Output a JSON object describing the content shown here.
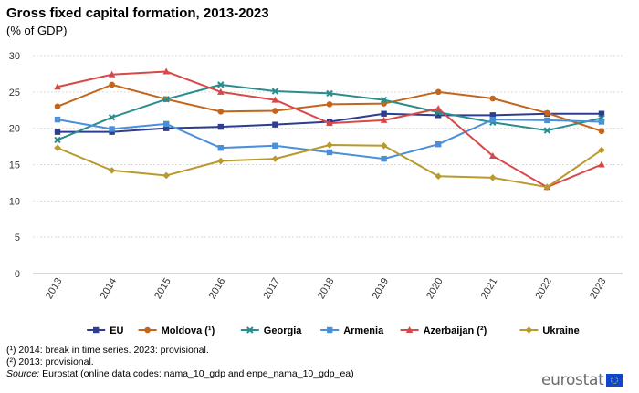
{
  "header": {
    "title": "Gross fixed capital formation, 2013-2023",
    "subtitle": "(% of GDP)"
  },
  "chart_data": {
    "type": "line",
    "title": "Gross fixed capital formation, 2013-2023",
    "subtitle": "(% of GDP)",
    "xlabel": "",
    "ylabel": "",
    "ylim": [
      0,
      30
    ],
    "yticks": [
      0,
      5,
      10,
      15,
      20,
      25,
      30
    ],
    "grid": "horizontal",
    "legend_position": "bottom",
    "x": [
      "2013",
      "2014",
      "2015",
      "2016",
      "2017",
      "2018",
      "2019",
      "2020",
      "2021",
      "2022",
      "2023"
    ],
    "series": [
      {
        "name": "EU",
        "color": "#2e3d8f",
        "marker": "square",
        "values": [
          19.5,
          19.5,
          20.0,
          20.2,
          20.5,
          20.9,
          22.0,
          21.8,
          21.8,
          22.0,
          22.0
        ]
      },
      {
        "name": "Moldova (¹)",
        "color": "#c2661b",
        "marker": "circle",
        "values": [
          23.0,
          26.0,
          24.0,
          22.3,
          22.4,
          23.3,
          23.4,
          25.0,
          24.1,
          22.1,
          19.6
        ]
      },
      {
        "name": "Georgia",
        "color": "#2a8c8c",
        "marker": "x",
        "values": [
          18.4,
          21.5,
          24.0,
          26.0,
          25.1,
          24.8,
          23.9,
          22.2,
          20.8,
          19.7,
          21.4
        ]
      },
      {
        "name": "Armenia",
        "color": "#4a90d9",
        "marker": "square",
        "values": [
          21.2,
          19.9,
          20.6,
          17.3,
          17.6,
          16.7,
          15.8,
          17.8,
          21.2,
          21.1,
          20.9
        ]
      },
      {
        "name": "Azerbaijan (²)",
        "color": "#d94848",
        "marker": "triangle",
        "values": [
          25.7,
          27.4,
          27.8,
          25.0,
          23.9,
          20.7,
          21.1,
          22.7,
          16.2,
          11.9,
          15.0
        ]
      },
      {
        "name": "Ukraine",
        "color": "#b89a2e",
        "marker": "diamond",
        "values": [
          17.3,
          14.2,
          13.5,
          15.5,
          15.8,
          17.7,
          17.6,
          13.4,
          13.2,
          11.9,
          17.0
        ]
      }
    ]
  },
  "footnotes": [
    "(¹) 2014: break in time series. 2023: provisional.",
    "(²) 2013: provisional."
  ],
  "source": {
    "label": "Source:",
    "text": " Eurostat (online data codes: nama_10_gdp and enpe_nama_10_gdp_ea)"
  },
  "logo": {
    "text": "eurostat"
  }
}
